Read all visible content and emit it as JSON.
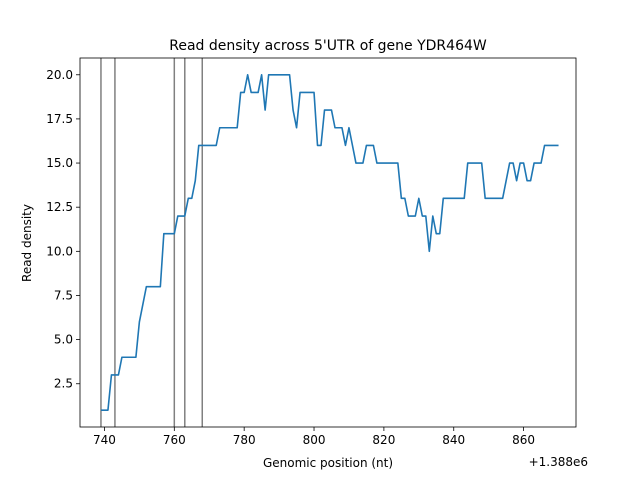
{
  "chart_data": {
    "type": "line",
    "title": "Read density across 5'UTR of gene YDR464W",
    "xlabel": "Genomic position (nt)",
    "ylabel": "Read density",
    "x_offset_label": "+1.388e6",
    "xlim": [
      733,
      875
    ],
    "ylim": [
      0.05,
      20.95
    ],
    "x_ticks": [
      740,
      760,
      780,
      800,
      820,
      840,
      860
    ],
    "x_tick_labels": [
      "740",
      "760",
      "780",
      "800",
      "820",
      "840",
      "860"
    ],
    "y_ticks": [
      2.5,
      5.0,
      7.5,
      10.0,
      12.5,
      15.0,
      17.5,
      20.0
    ],
    "y_tick_labels": [
      "2.5",
      "5.0",
      "7.5",
      "10.0",
      "12.5",
      "15.0",
      "17.5",
      "20.0"
    ],
    "grid": false,
    "series": [
      {
        "color": "#1f77b4",
        "x": [
          739,
          740,
          741,
          742,
          743,
          744,
          745,
          746,
          747,
          748,
          749,
          750,
          751,
          752,
          753,
          754,
          755,
          756,
          757,
          758,
          759,
          760,
          761,
          762,
          763,
          764,
          765,
          766,
          767,
          768,
          769,
          770,
          771,
          772,
          773,
          774,
          775,
          776,
          777,
          778,
          779,
          780,
          781,
          782,
          783,
          784,
          785,
          786,
          787,
          788,
          789,
          790,
          791,
          792,
          793,
          794,
          795,
          796,
          797,
          798,
          799,
          800,
          801,
          802,
          803,
          804,
          805,
          806,
          807,
          808,
          809,
          810,
          811,
          812,
          813,
          814,
          815,
          816,
          817,
          818,
          819,
          820,
          821,
          822,
          823,
          824,
          825,
          826,
          827,
          828,
          829,
          830,
          831,
          832,
          833,
          834,
          835,
          836,
          837,
          838,
          839,
          840,
          841,
          842,
          843,
          844,
          845,
          846,
          847,
          848,
          849,
          850,
          851,
          852,
          853,
          854,
          855,
          856,
          857,
          858,
          859,
          860,
          861,
          862,
          863,
          864,
          865,
          866,
          867,
          868,
          869,
          870
        ],
        "y": [
          1,
          1,
          1,
          3,
          3,
          3,
          4,
          4,
          4,
          4,
          4,
          6,
          7,
          8,
          8,
          8,
          8,
          8,
          11,
          11,
          11,
          11,
          12,
          12,
          12,
          13,
          13,
          14,
          16,
          16,
          16,
          16,
          16,
          16,
          17,
          17,
          17,
          17,
          17,
          17,
          19,
          19,
          20,
          19,
          19,
          19,
          20,
          18,
          20,
          20,
          20,
          20,
          20,
          20,
          20,
          18,
          17,
          19,
          19,
          19,
          19,
          19,
          16,
          16,
          18,
          18,
          18,
          17,
          17,
          17,
          16,
          17,
          16,
          15,
          15,
          15,
          16,
          16,
          16,
          15,
          15,
          15,
          15,
          15,
          15,
          15,
          13,
          13,
          12,
          12,
          12,
          13,
          12,
          12,
          10,
          12,
          11,
          11,
          13,
          13,
          13,
          13,
          13,
          13,
          13,
          15,
          15,
          15,
          15,
          15,
          13,
          13,
          13,
          13,
          13,
          13,
          14,
          15,
          15,
          14,
          15,
          15,
          14,
          14,
          15,
          15,
          15,
          16,
          16,
          16,
          16,
          16
        ]
      }
    ],
    "vlines": {
      "color": "#808080",
      "x": [
        739,
        743,
        760,
        763,
        768
      ]
    }
  }
}
